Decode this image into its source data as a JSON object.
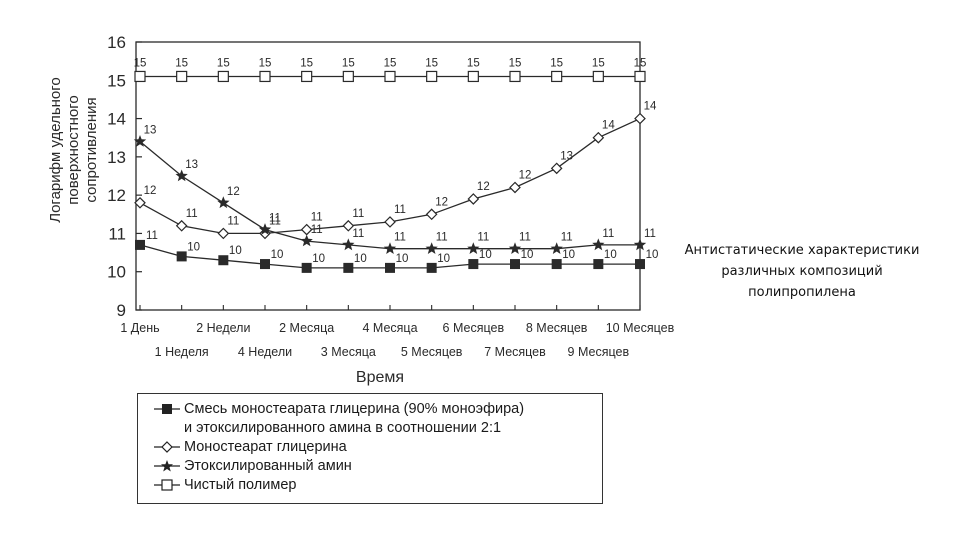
{
  "chart_data": {
    "type": "line",
    "ylabel": "Логарифм удельного поверхностного сопротивления",
    "xlabel": "Время",
    "ylim": [
      9,
      16
    ],
    "yticks": [
      "9",
      "10",
      "11",
      "12",
      "13",
      "14",
      "15",
      "16"
    ],
    "categories": [
      "1 День",
      "1 Неделя",
      "2 Недели",
      "4 Недели",
      "2 Месяца",
      "3 Месяца",
      "4 Месяца",
      "5 Месяцев",
      "6 Месяцев",
      "7 Месяцев",
      "8 Месяцев",
      "9 Месяцев",
      "10 Месяцев"
    ],
    "grid": false,
    "legend_position": "bottom",
    "series": [
      {
        "name": "Смесь моностеарата глицерина (90% моноэфира) и этоксилированного амина в соотношении 2:1",
        "marker": "filled-square",
        "values": [
          10.7,
          10.4,
          10.3,
          10.2,
          10.1,
          10.1,
          10.1,
          10.1,
          10.2,
          10.2,
          10.2,
          10.2,
          10.2
        ],
        "labels": [
          "11",
          "10",
          "10",
          "10",
          "10",
          "10",
          "10",
          "10",
          "10",
          "10",
          "10",
          "10",
          "10"
        ]
      },
      {
        "name": "Моностеарат глицерина",
        "marker": "open-diamond",
        "values": [
          11.8,
          11.2,
          11.0,
          11.0,
          11.1,
          11.2,
          11.3,
          11.5,
          11.9,
          12.2,
          12.7,
          13.5,
          14.0
        ],
        "labels": [
          "12",
          "11",
          "11",
          "11",
          "11",
          "11",
          "11",
          "12",
          "12",
          "12",
          "13",
          "14",
          "14"
        ]
      },
      {
        "name": "Этоксилированный амин",
        "marker": "star",
        "values": [
          13.4,
          12.5,
          11.8,
          11.1,
          10.8,
          10.7,
          10.6,
          10.6,
          10.6,
          10.6,
          10.6,
          10.7,
          10.7
        ],
        "labels": [
          "13",
          "13",
          "12",
          "11",
          "11",
          "11",
          "11",
          "11",
          "11",
          "11",
          "11",
          "11",
          "11"
        ]
      },
      {
        "name": "Чистый полимер",
        "marker": "open-square",
        "values": [
          15.1,
          15.1,
          15.1,
          15.1,
          15.1,
          15.1,
          15.1,
          15.1,
          15.1,
          15.1,
          15.1,
          15.1,
          15.1
        ],
        "labels": [
          "15",
          "15",
          "15",
          "15",
          "15",
          "15",
          "15",
          "15",
          "15",
          "15",
          "15",
          "15",
          "15"
        ]
      }
    ]
  },
  "legend": {
    "item1_line1": "Смесь моностеарата глицерина (90% моноэфира)",
    "item1_line2": "и этоксилированного амина в соотношении 2:1",
    "item2": "Моностеарат глицерина",
    "item3": "Этоксилированный амин",
    "item4": "Чистый полимер"
  },
  "caption": {
    "line1": "Антистатические характеристики",
    "line2": "различных композиций",
    "line3": "полипропилена"
  }
}
